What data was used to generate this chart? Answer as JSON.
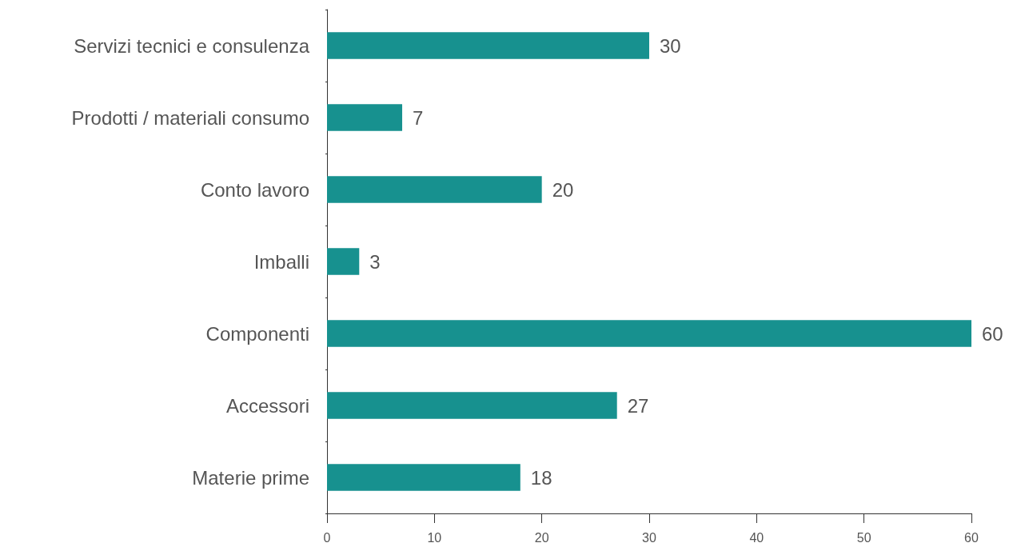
{
  "chart_data": {
    "type": "bar",
    "orientation": "horizontal",
    "categories": [
      "Servizi tecnici e consulenza",
      "Prodotti / materiali consumo",
      "Conto lavoro",
      "Imballi",
      "Componenti",
      "Accessori",
      "Materie prime"
    ],
    "values": [
      30,
      7,
      20,
      3,
      60,
      27,
      18
    ],
    "color": "#17918f",
    "xlim": [
      0,
      60
    ],
    "xticks": [
      0,
      10,
      20,
      30,
      40,
      50,
      60
    ],
    "data_labels": true,
    "grid": false
  }
}
